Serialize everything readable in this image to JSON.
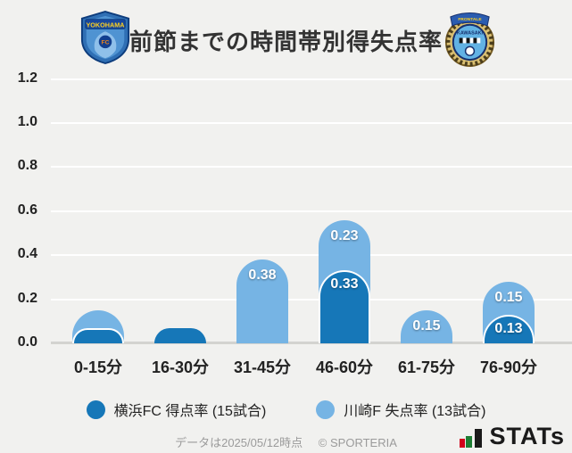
{
  "header": {
    "title": "前節までの時間帯別得失点率"
  },
  "logos": {
    "left_team": "横浜FC",
    "left_banner": "YOKOHAMA",
    "left_mono": "FC",
    "right_team": "川崎フロンターレ",
    "right_banner": "FRONTALE",
    "right_name": "KAWASAKI"
  },
  "chart_data": {
    "type": "bar",
    "stacked": true,
    "title": "前節までの時間帯別得失点率",
    "xlabel": "",
    "ylabel": "",
    "categories": [
      "0-15分",
      "16-30分",
      "31-45分",
      "46-60分",
      "61-75分",
      "76-90分"
    ],
    "series": [
      {
        "name": "横浜FC 得点率 (15試合)",
        "color": "#1677b8",
        "values": [
          0.07,
          0.07,
          0,
          0.33,
          0,
          0.13
        ],
        "labels": [
          "",
          "",
          "",
          "0.33",
          "",
          "0.13"
        ]
      },
      {
        "name": "川崎F 失点率 (13試合)",
        "color": "#76b4e4",
        "values": [
          0.08,
          0,
          0.38,
          0.23,
          0.15,
          0.15
        ],
        "labels": [
          "",
          "",
          "0.38",
          "0.23",
          "0.15",
          "0.15"
        ]
      }
    ],
    "ylim": [
      0,
      1.2
    ],
    "yticks": [
      "0.0",
      "0.2",
      "0.4",
      "0.6",
      "0.8",
      "1.0",
      "1.2"
    ],
    "grid": true,
    "legend_position": "bottom"
  },
  "legend": {
    "items": [
      {
        "label": "横浜FC 得点率 (15試合)",
        "color": "#1677b8"
      },
      {
        "label": "川崎F 失点率 (13試合)",
        "color": "#76b4e4"
      }
    ]
  },
  "footer": {
    "data_note": "データは2025/05/12時点",
    "copyright": "© SPORTERIA",
    "brand": "STATs"
  }
}
